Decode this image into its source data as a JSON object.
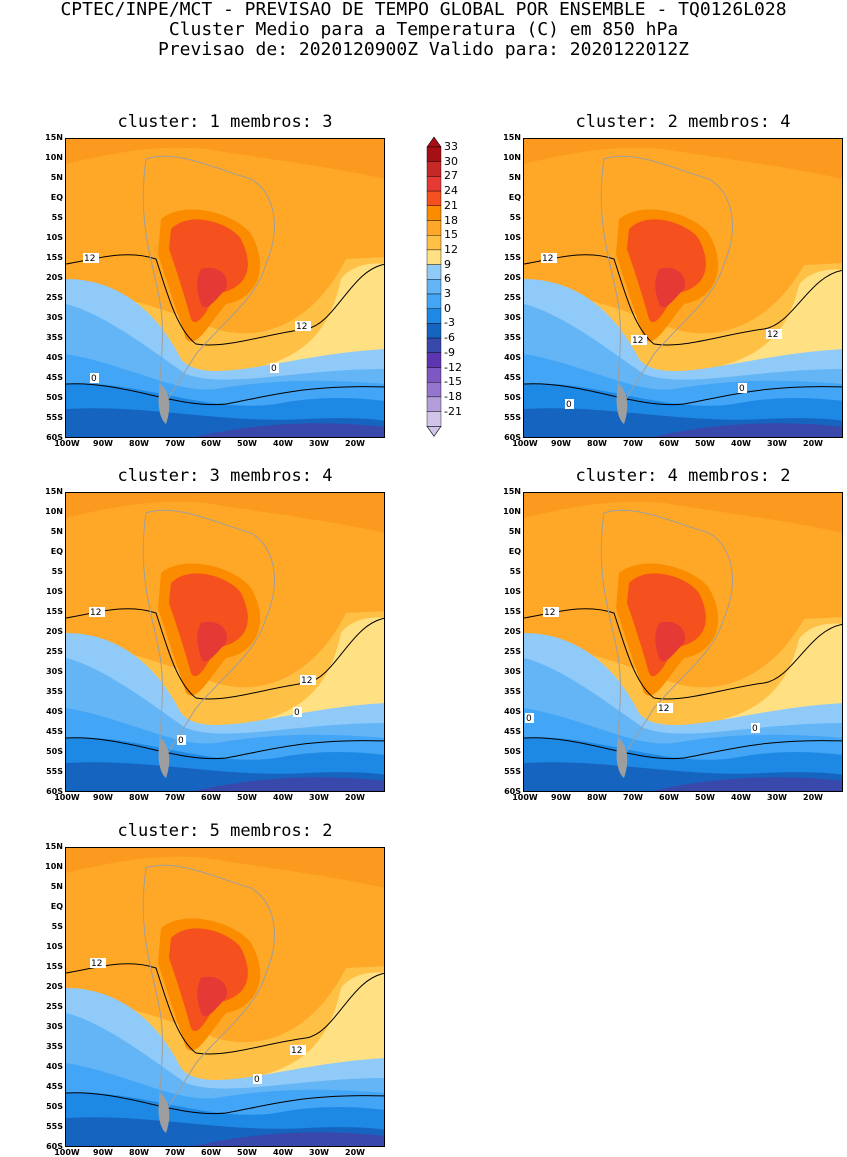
{
  "header": {
    "line1": "CPTEC/INPE/MCT - PREVISAO DE TEMPO GLOBAL POR ENSEMBLE - TQ0126L028",
    "line2": "Cluster Medio para a Temperatura (C) em 850 hPa",
    "line3": "Previsao de: 2020120900Z   Valido para: 2020122012Z"
  },
  "axes": {
    "lat_labels": [
      "15N",
      "10N",
      "5N",
      "EQ",
      "5S",
      "10S",
      "15S",
      "20S",
      "25S",
      "30S",
      "35S",
      "40S",
      "45S",
      "50S",
      "55S",
      "60S"
    ],
    "lon_labels": [
      "100W",
      "90W",
      "80W",
      "70W",
      "60W",
      "50W",
      "40W",
      "30W",
      "20W"
    ]
  },
  "colorbar": {
    "labels": [
      "33",
      "30",
      "27",
      "24",
      "21",
      "18",
      "15",
      "12",
      "9",
      "6",
      "3",
      "0",
      "-3",
      "-6",
      "-9",
      "-12",
      "-15",
      "-18",
      "-21"
    ],
    "colors": [
      "#a50f15",
      "#c62828",
      "#e53935",
      "#f4511e",
      "#fb8c00",
      "#ffa726",
      "#ffc046",
      "#ffe082",
      "#90caf9",
      "#64b5f6",
      "#42a5f5",
      "#1e88e5",
      "#1565c0",
      "#3949ab",
      "#5e35b1",
      "#7e57c2",
      "#9575cd",
      "#b39ddb",
      "#d1c4e9"
    ]
  },
  "panels": [
    {
      "title": "cluster: 1   membros: 3",
      "contour_labels": [
        "12",
        "12",
        "0",
        "0"
      ]
    },
    {
      "title": "cluster: 2   membros: 4",
      "contour_labels": [
        "12",
        "12",
        "12",
        "0",
        "0"
      ]
    },
    {
      "title": "cluster: 3   membros: 4",
      "contour_labels": [
        "12",
        "12",
        "0",
        "0"
      ]
    },
    {
      "title": "cluster: 4   membros: 2",
      "contour_labels": [
        "12",
        "12",
        "0",
        "0"
      ]
    },
    {
      "title": "cluster: 5   membros: 2",
      "contour_labels": [
        "12",
        "12",
        "0"
      ]
    }
  ]
}
